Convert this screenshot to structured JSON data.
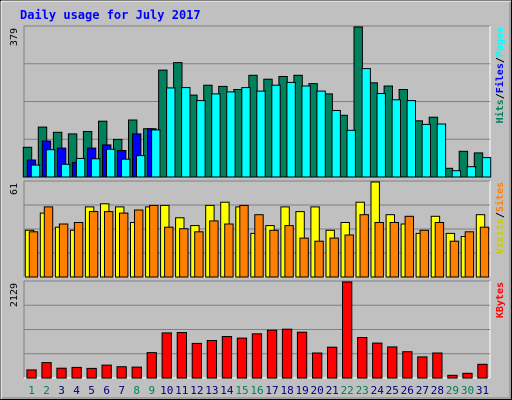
{
  "chart_data": {
    "type": "bar",
    "title": "Daily usage for July 2017",
    "categories": [
      "1",
      "2",
      "3",
      "4",
      "5",
      "6",
      "7",
      "8",
      "9",
      "10",
      "11",
      "12",
      "13",
      "14",
      "15",
      "16",
      "17",
      "18",
      "19",
      "20",
      "21",
      "22",
      "23",
      "24",
      "25",
      "26",
      "27",
      "28",
      "29",
      "30",
      "31"
    ],
    "weekend_days": [
      "1",
      "2",
      "8",
      "9",
      "15",
      "16",
      "22",
      "23",
      "29",
      "30"
    ],
    "panels": [
      {
        "name": "hits_files_pages",
        "y_max_label": "379",
        "ylim": [
          0,
          379
        ],
        "series": [
          {
            "name": "Hits",
            "color": "#00805c",
            "values": [
              75,
              126,
              113,
              109,
              115,
              141,
              95,
              144,
              122,
              270,
              289,
              207,
              232,
              229,
              221,
              257,
              247,
              254,
              257,
              236,
              210,
              156,
              379,
              238,
              230,
              221,
              142,
              151,
              22,
              65,
              61
            ]
          },
          {
            "name": "Files",
            "color": "#0000ff",
            "values": [
              43,
              91,
              73,
              37,
              73,
              81,
              67,
              109,
              122,
              0,
              0,
              0,
              0,
              0,
              0,
              0,
              0,
              0,
              0,
              0,
              0,
              0,
              0,
              0,
              0,
              0,
              0,
              0,
              0,
              0,
              0
            ]
          },
          {
            "name": "Pages",
            "color": "#00ffff",
            "values": [
              30,
              69,
              32,
              47,
              46,
              70,
              45,
              54,
              119,
              225,
              226,
              193,
              210,
              215,
              226,
              217,
              232,
              239,
              230,
              217,
              168,
              118,
              274,
              211,
              195,
              193,
              133,
              134,
              16,
              26,
              49
            ]
          }
        ]
      },
      {
        "name": "sites_visits",
        "y_max_label": "61",
        "ylim": [
          0,
          61
        ],
        "series": [
          {
            "name": "Visits",
            "color": "#ffff00",
            "values": [
              30,
              41,
              32,
              30,
              45,
              47,
              45,
              35,
              45,
              46,
              38,
              33,
              46,
              48,
              45,
              28,
              33,
              45,
              42,
              45,
              30,
              35,
              48,
              61,
              40,
              34,
              28,
              39,
              28,
              26,
              40
            ]
          },
          {
            "name": "Sites",
            "color": "#ff8000",
            "values": [
              29,
              45,
              34,
              35,
              42,
              42,
              41,
              43,
              46,
              32,
              31,
              29,
              36,
              34,
              46,
              40,
              30,
              33,
              25,
              23,
              25,
              27,
              40,
              35,
              35,
              39,
              30,
              35,
              23,
              29,
              32
            ]
          }
        ]
      },
      {
        "name": "kbytes",
        "y_max_label": "2129",
        "ylim": [
          0,
          2129
        ],
        "series": [
          {
            "name": "KBytes",
            "color": "#ff0000",
            "values": [
              180,
              342,
              217,
              234,
              214,
              286,
              251,
              242,
              563,
              1000,
              1010,
              768,
              832,
              920,
              884,
              981,
              1061,
              1082,
              1016,
              554,
              684,
              2129,
              898,
              774,
              689,
              583,
              468,
              554,
              60,
              105,
              303
            ]
          }
        ]
      }
    ],
    "legends": {
      "panel1": [
        {
          "text": "Hits",
          "color": "#00805c"
        },
        {
          "text": "/",
          "color": "#000000"
        },
        {
          "text": "Files",
          "color": "#0000ff"
        },
        {
          "text": "/",
          "color": "#000000"
        },
        {
          "text": "Pages",
          "color": "#00ffff"
        }
      ],
      "panel2": [
        {
          "text": "Visits",
          "color": "#cccc00"
        },
        {
          "text": "/",
          "color": "#000000"
        },
        {
          "text": "Sites",
          "color": "#ff8000"
        }
      ],
      "panel3": [
        {
          "text": "KBytes",
          "color": "#ff0000"
        }
      ]
    },
    "colors": {
      "background": "#c0c0c0",
      "title": "#0000ff",
      "weekday_label": "#000080",
      "weekend_label": "#00805c",
      "ylabel": "#000000"
    }
  }
}
